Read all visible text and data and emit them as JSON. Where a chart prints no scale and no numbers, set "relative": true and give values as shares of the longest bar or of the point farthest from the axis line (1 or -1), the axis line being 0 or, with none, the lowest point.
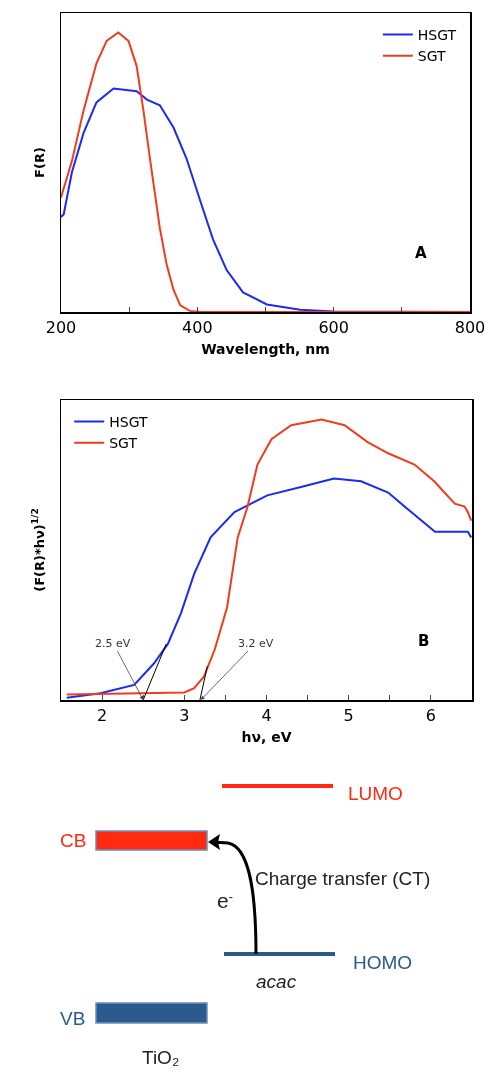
{
  "chart_data": [
    {
      "type": "line",
      "relative": true,
      "xlabel": "Wavelength, nm",
      "ylabel": "F(R)",
      "xlim": [
        200,
        800
      ],
      "xticks": [
        200,
        {
          "value": 300,
          "label": null
        },
        400,
        {
          "value": 500,
          "label": null
        },
        600,
        {
          "value": 700,
          "label": null
        },
        800
      ],
      "tick_labels": "x",
      "legend": "top right",
      "annotations": [
        "A"
      ],
      "series": [
        {
          "name": "HSGT",
          "color": "#1a2cf0",
          "x": [
            200,
            204,
            216,
            233,
            252,
            277,
            311,
            326,
            345,
            365,
            384,
            404,
            423,
            443,
            467,
            502,
            551,
            600,
            800
          ],
          "values": [
            0.34,
            0.35,
            0.5,
            0.64,
            0.75,
            0.8,
            0.79,
            0.76,
            0.74,
            0.66,
            0.55,
            0.4,
            0.26,
            0.15,
            0.07,
            0.027,
            0.008,
            0.002,
            0
          ]
        },
        {
          "name": "SGT",
          "color": "#f03c1e",
          "x": [
            200,
            216,
            233,
            252,
            267,
            284,
            299,
            311,
            321,
            331,
            338,
            345,
            355,
            365,
            375,
            389,
            404,
            800
          ],
          "values": [
            0.41,
            0.54,
            0.72,
            0.89,
            0.97,
            1,
            0.97,
            0.88,
            0.72,
            0.54,
            0.42,
            0.3,
            0.17,
            0.08,
            0.024,
            0.004,
            0,
            0
          ]
        }
      ]
    },
    {
      "type": "line",
      "relative": true,
      "xlabel": "hν, eV",
      "ylabel": "(F(R)*hν)$^{1/2}$",
      "xlim": [
        1.5,
        6.5
      ],
      "xticks": [
        2,
        {
          "value": 2.5,
          "label": null
        },
        3,
        {
          "value": 3.5,
          "label": null
        },
        4,
        {
          "value": 4.5,
          "label": null
        },
        5,
        {
          "value": 5.5,
          "label": null
        },
        6,
        {
          "value": 6.5,
          "label": null
        }
      ],
      "tick_labels": "x",
      "legend": "top left",
      "annotations": [
        {
          "text": "2.5 eV",
          "x": 2.5,
          "y": 0
        },
        {
          "text": "3.2 eV",
          "x": 3.2,
          "y": 0
        },
        "B"
      ],
      "series": [
        {
          "name": "HSGT",
          "color": "#1a2cf0",
          "x": [
            1.57,
            1.98,
            2.39,
            2.63,
            2.8,
            2.96,
            3.12,
            3.32,
            3.61,
            4.01,
            4.42,
            4.82,
            5.15,
            5.48,
            5.72,
            6.05,
            6.29,
            6.45,
            6.49
          ],
          "values": [
            0.008,
            0.024,
            0.054,
            0.13,
            0.2,
            0.31,
            0.45,
            0.58,
            0.67,
            0.73,
            0.76,
            0.79,
            0.78,
            0.74,
            0.68,
            0.6,
            0.6,
            0.6,
            0.58
          ]
        },
        {
          "name": "SGT",
          "color": "#f03c1e",
          "x": [
            1.57,
            3.0,
            3.12,
            3.24,
            3.37,
            3.52,
            3.65,
            3.77,
            3.89,
            4.06,
            4.3,
            4.67,
            4.95,
            5.23,
            5.48,
            5.8,
            6.04,
            6.29,
            6.41,
            6.45,
            6.49
          ],
          "values": [
            0.02,
            0.027,
            0.042,
            0.084,
            0.18,
            0.33,
            0.58,
            0.69,
            0.84,
            0.93,
            0.98,
            1,
            0.98,
            0.92,
            0.88,
            0.84,
            0.78,
            0.7,
            0.69,
            0.67,
            0.64
          ]
        },
        {
          "type": "line",
          "color": "#000000",
          "x": [
            2.5,
            2.78
          ],
          "values": [
            0,
            0.2
          ]
        },
        {
          "type": "line",
          "color": "#000000",
          "x": [
            3.19,
            3.28
          ],
          "values": [
            0,
            0.12
          ]
        }
      ]
    },
    {
      "type": "other",
      "annotations": [
        "LUMO",
        "CB",
        "Charge transfer (CT)",
        "e$^{-}$",
        "HOMO",
        "acac",
        "VB",
        "TiO₂"
      ]
    }
  ]
}
